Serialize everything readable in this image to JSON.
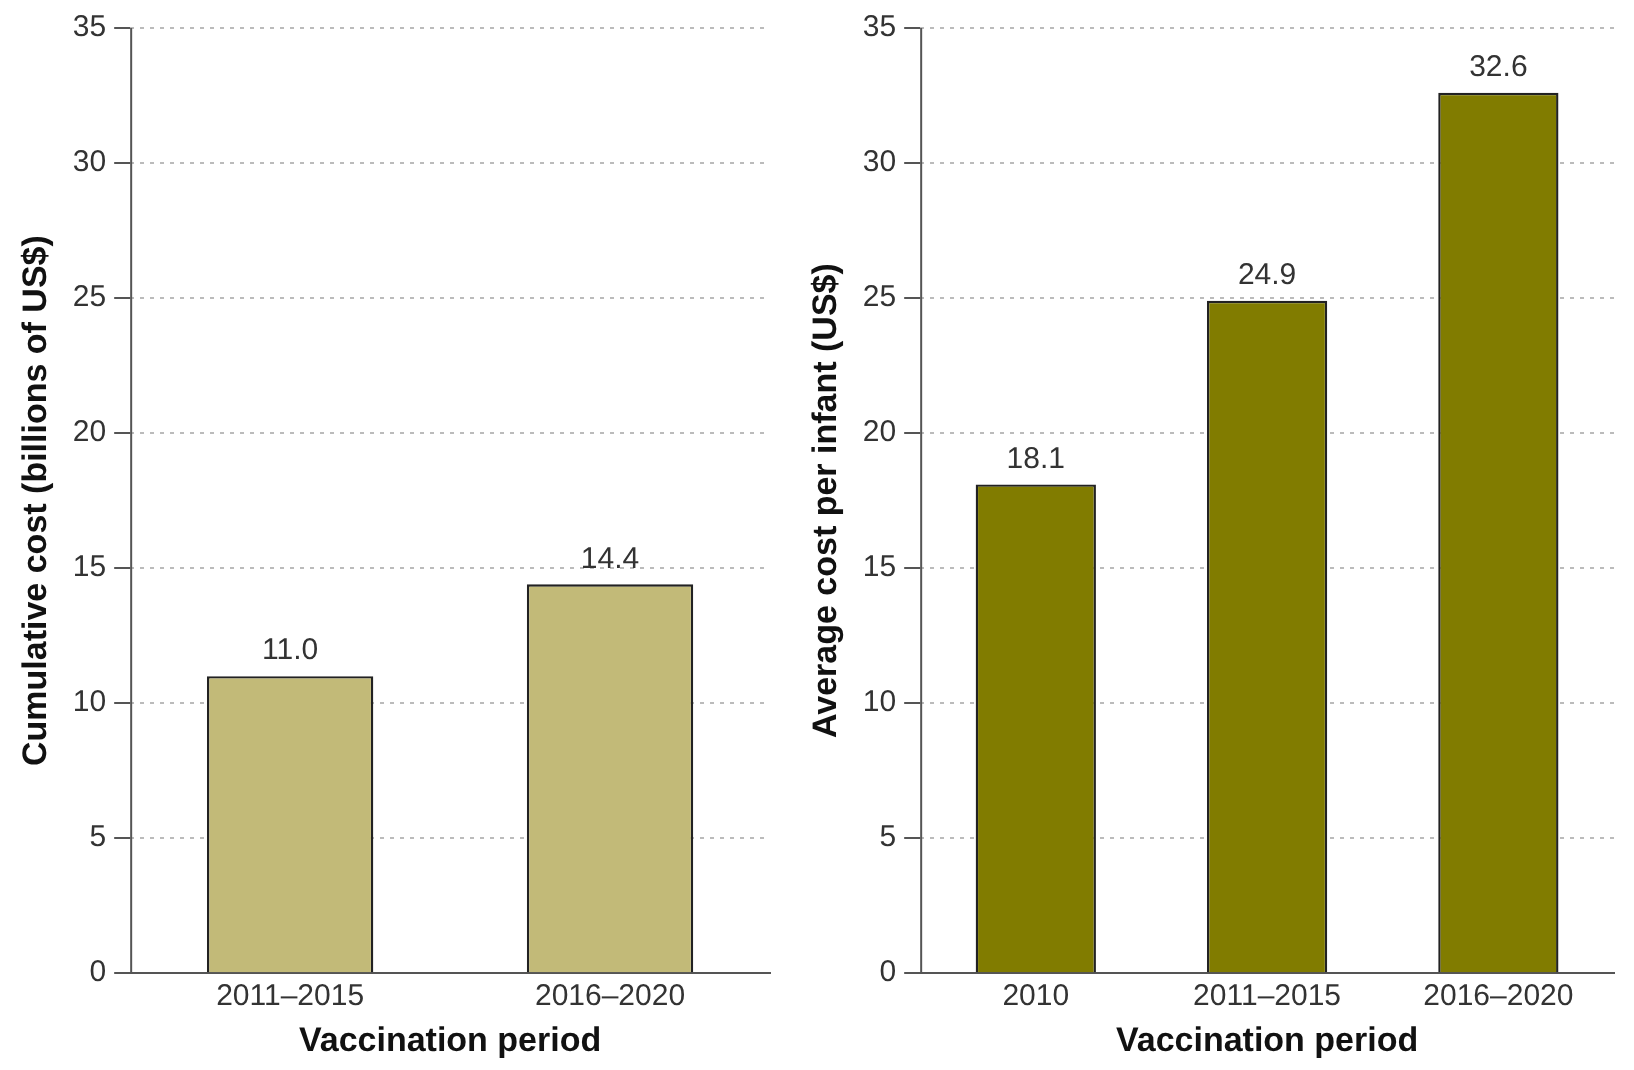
{
  "chart_data": [
    {
      "type": "bar",
      "categories": [
        "2011–2015",
        "2016–2020"
      ],
      "values": [
        11.0,
        14.4
      ],
      "value_labels": [
        "11.0",
        "14.4"
      ],
      "color": "#c2ba78",
      "xlabel": "Vaccination period",
      "ylabel": "Cumulative cost (billions of US$)",
      "ylim": [
        0,
        35
      ],
      "yticks": [
        0,
        5,
        10,
        15,
        20,
        25,
        30,
        35
      ],
      "grid": "y"
    },
    {
      "type": "bar",
      "categories": [
        "2010",
        "2011–2015",
        "2016–2020"
      ],
      "values": [
        18.1,
        24.9,
        32.6
      ],
      "color": "#817c00",
      "xlabel": "Vaccination period",
      "ylabel": "Average cost per infant (US$)",
      "ylim": [
        0,
        35
      ],
      "yticks": [
        0,
        5,
        10,
        15,
        20,
        25,
        30,
        35
      ],
      "grid": "y",
      "data_labels": true
    }
  ]
}
